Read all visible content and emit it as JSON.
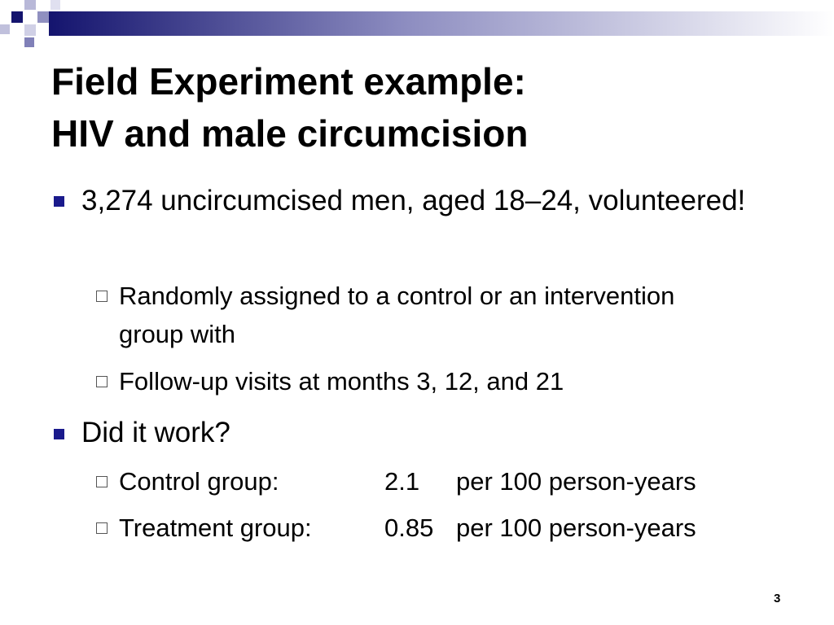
{
  "slide": {
    "title": [
      "Field Experiment example:",
      "HIV and male circumcision"
    ],
    "bullets": [
      {
        "text": "3,274 uncircumcised men, aged 18–24, volunteered!",
        "sub": [
          "Randomly assigned to a control or an intervention group with",
          "Follow-up visits at months 3, 12, and 21"
        ]
      },
      {
        "text": "Did it work?",
        "rows": [
          [
            "Control group:",
            "2.1",
            "per 100 person-years"
          ],
          [
            "Treatment group:",
            "0.85",
            "per 100 person-years"
          ]
        ]
      }
    ],
    "page_number": "3"
  }
}
